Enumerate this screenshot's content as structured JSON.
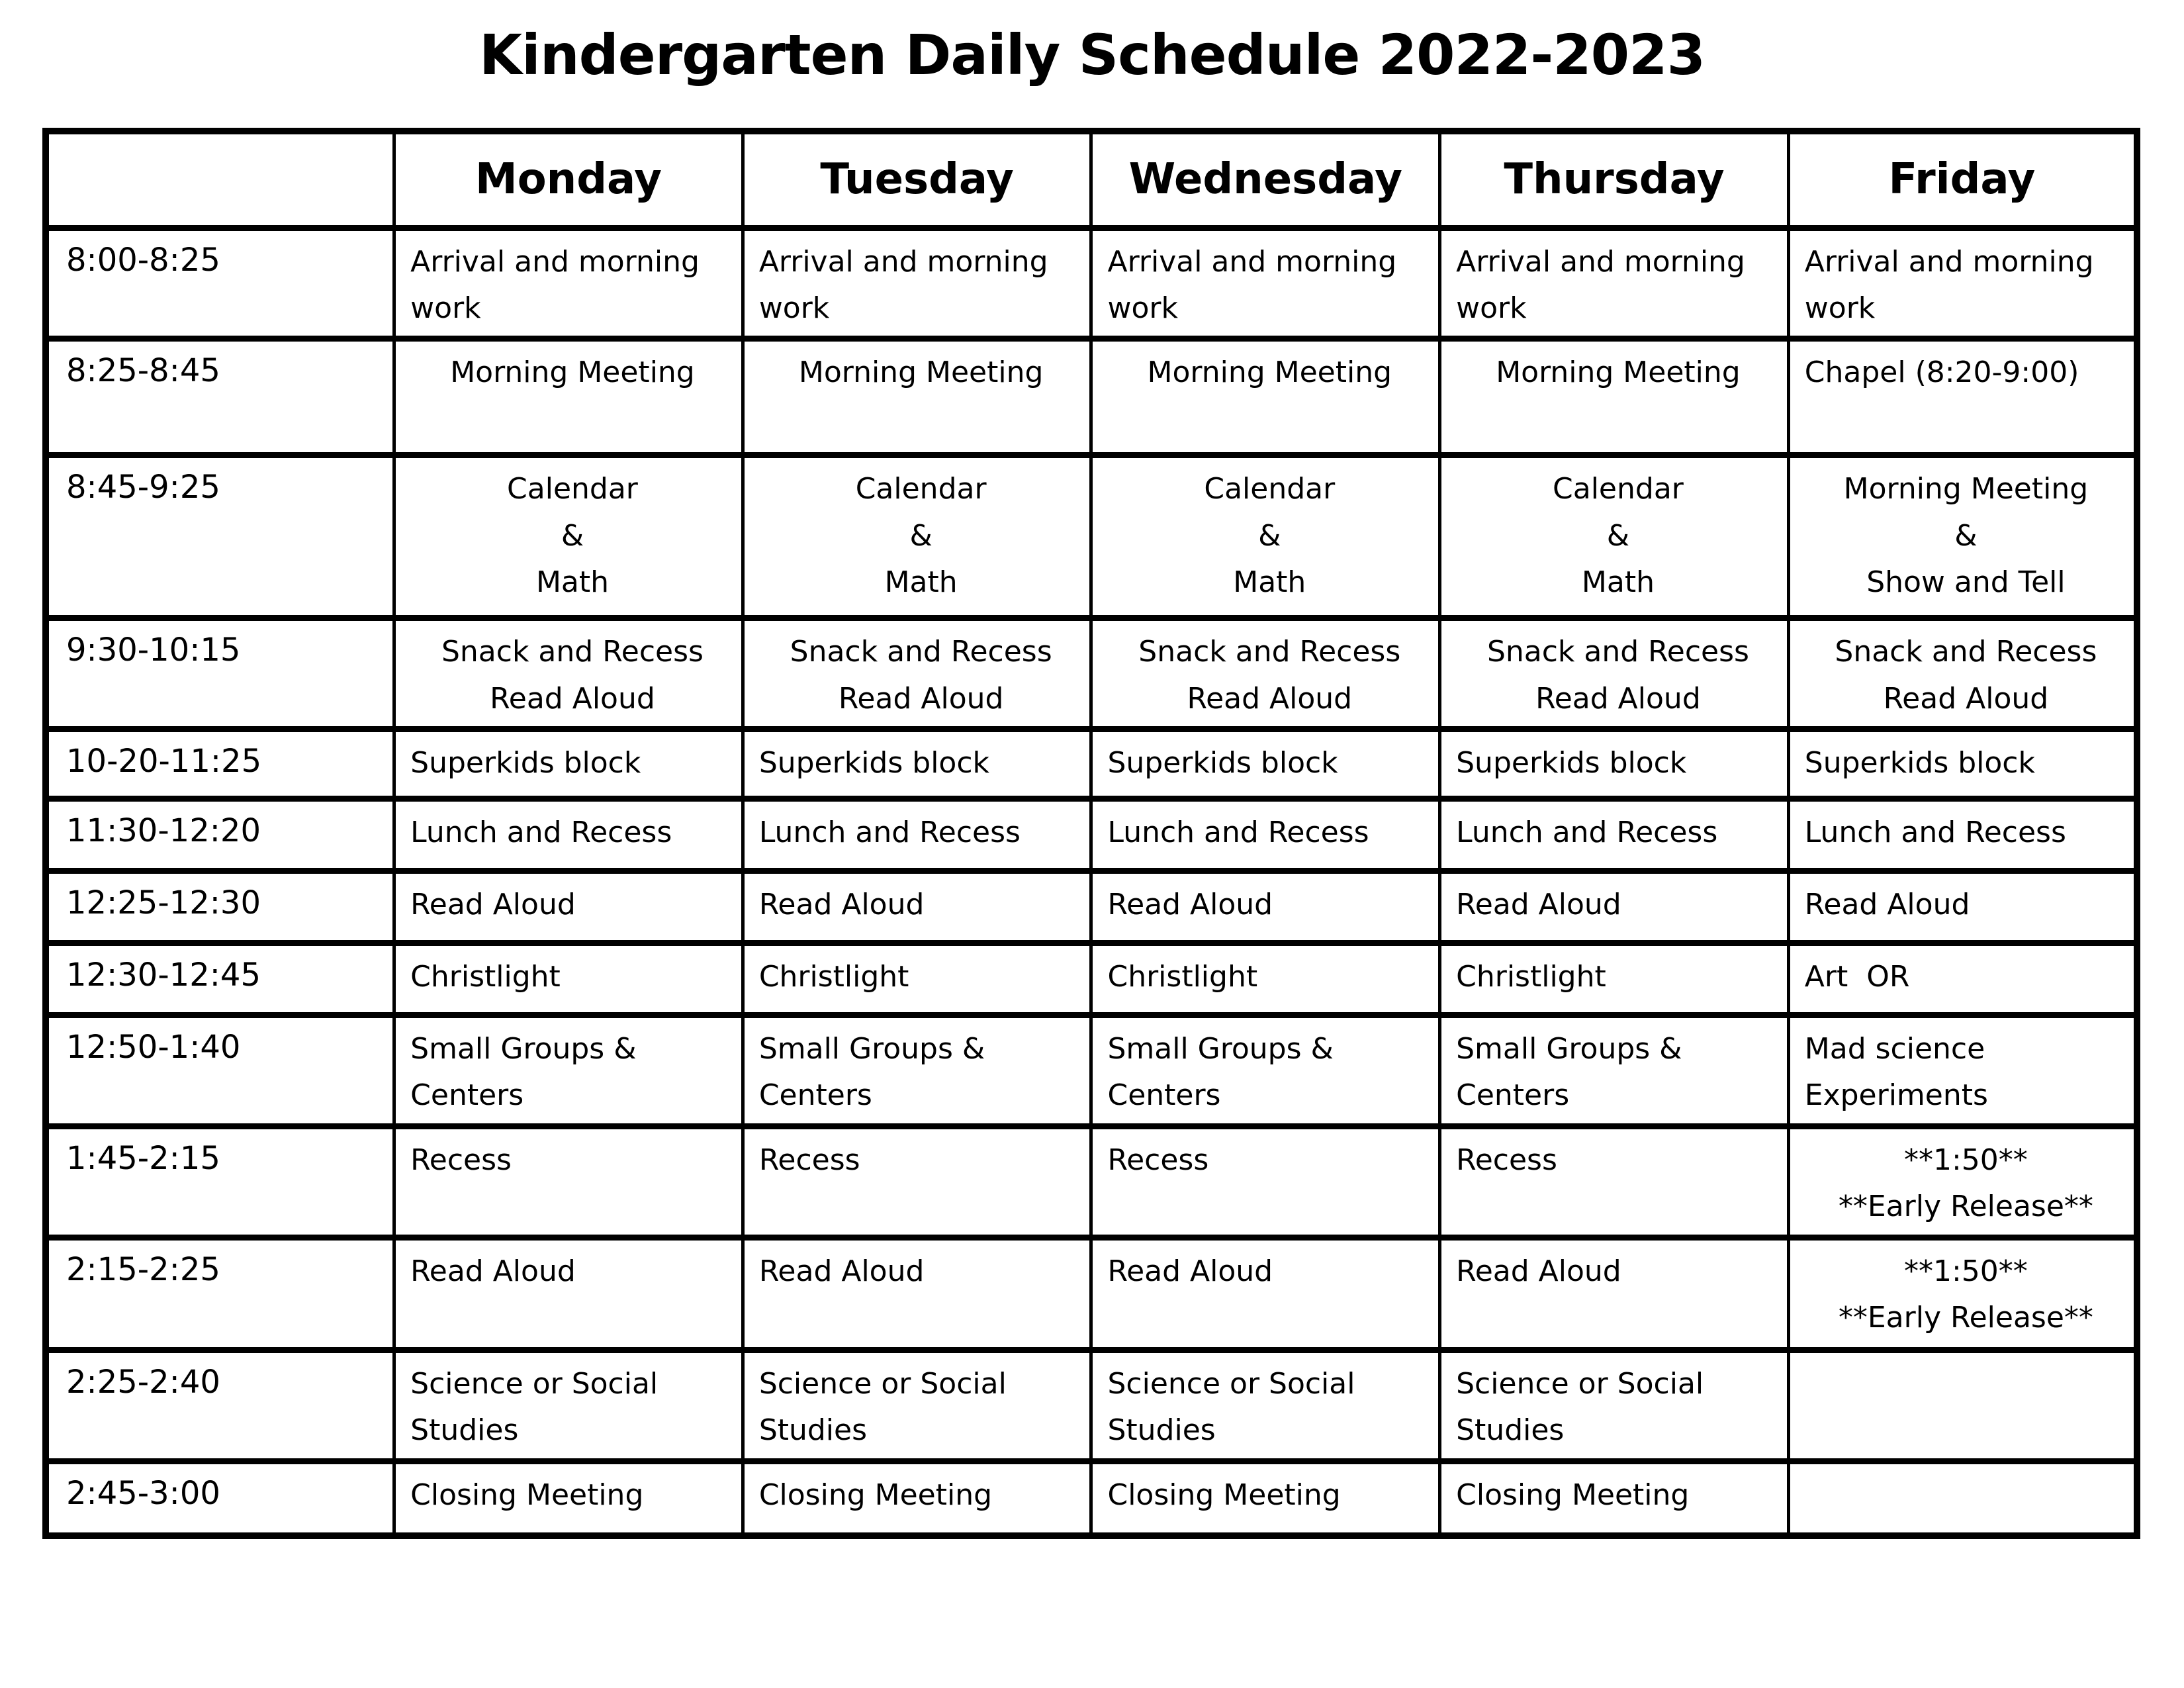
{
  "title": "Kindergarten Daily Schedule 2022-2023",
  "columns": [
    "",
    "Monday",
    "Tuesday",
    "Wednesday",
    "Thursday",
    "Friday"
  ],
  "rows": [
    {
      "time": "8:00-8:25",
      "cells": [
        {
          "text": "Arrival and morning\nwork",
          "align": "left"
        },
        {
          "text": "Arrival and morning\nwork",
          "align": "left"
        },
        {
          "text": "Arrival and morning\nwork",
          "align": "left"
        },
        {
          "text": "Arrival and morning\nwork",
          "align": "left"
        },
        {
          "text": "Arrival and morning\nwork",
          "align": "left"
        }
      ]
    },
    {
      "time": "8:25-8:45",
      "cells": [
        {
          "text": "Morning Meeting",
          "align": "center"
        },
        {
          "text": "Morning Meeting",
          "align": "center"
        },
        {
          "text": "Morning Meeting",
          "align": "center"
        },
        {
          "text": "Morning Meeting",
          "align": "center"
        },
        {
          "text": "Chapel (8:20-9:00)",
          "align": "left"
        }
      ]
    },
    {
      "time": "8:45-9:25",
      "cells": [
        {
          "text": "Calendar\n&\nMath",
          "align": "center"
        },
        {
          "text": "Calendar\n&\nMath",
          "align": "center"
        },
        {
          "text": "Calendar\n&\nMath",
          "align": "center"
        },
        {
          "text": "Calendar\n&\nMath",
          "align": "center"
        },
        {
          "text": "Morning Meeting\n&\nShow and Tell",
          "align": "center"
        }
      ]
    },
    {
      "time": "9:30-10:15",
      "cells": [
        {
          "text": "Snack and Recess\nRead Aloud",
          "align": "center"
        },
        {
          "text": "Snack and Recess\nRead Aloud",
          "align": "center"
        },
        {
          "text": "Snack and Recess\nRead Aloud",
          "align": "center"
        },
        {
          "text": "Snack and Recess\nRead Aloud",
          "align": "center"
        },
        {
          "text": "Snack and Recess\nRead Aloud",
          "align": "center"
        }
      ]
    },
    {
      "time": "10-20-11:25",
      "cells": [
        {
          "text": "Superkids block",
          "align": "left"
        },
        {
          "text": "Superkids block",
          "align": "left"
        },
        {
          "text": "Superkids block",
          "align": "left"
        },
        {
          "text": "Superkids block",
          "align": "left"
        },
        {
          "text": "Superkids block",
          "align": "left"
        }
      ]
    },
    {
      "time": "11:30-12:20",
      "cells": [
        {
          "text": "Lunch and Recess",
          "align": "left"
        },
        {
          "text": "Lunch and Recess",
          "align": "left"
        },
        {
          "text": "Lunch and Recess",
          "align": "left"
        },
        {
          "text": "Lunch and Recess",
          "align": "left"
        },
        {
          "text": "Lunch and Recess",
          "align": "left"
        }
      ]
    },
    {
      "time": "12:25-12:30",
      "cells": [
        {
          "text": "Read Aloud",
          "align": "left"
        },
        {
          "text": "Read Aloud",
          "align": "left"
        },
        {
          "text": "Read Aloud",
          "align": "left"
        },
        {
          "text": "Read Aloud",
          "align": "left"
        },
        {
          "text": "Read Aloud",
          "align": "left"
        }
      ]
    },
    {
      "time": "12:30-12:45",
      "cells": [
        {
          "text": "Christlight",
          "align": "left"
        },
        {
          "text": "Christlight",
          "align": "left"
        },
        {
          "text": "Christlight",
          "align": "left"
        },
        {
          "text": "Christlight",
          "align": "left"
        },
        {
          "text": "Art  OR",
          "align": "left"
        }
      ]
    },
    {
      "time": "12:50-1:40",
      "cells": [
        {
          "text": "Small Groups &\nCenters",
          "align": "left"
        },
        {
          "text": "Small Groups &\nCenters",
          "align": "left"
        },
        {
          "text": "Small Groups &\nCenters",
          "align": "left"
        },
        {
          "text": "Small Groups &\nCenters",
          "align": "left"
        },
        {
          "text": "Mad science\nExperiments",
          "align": "left"
        }
      ]
    },
    {
      "time": "1:45-2:15",
      "cells": [
        {
          "text": "Recess",
          "align": "left"
        },
        {
          "text": "Recess",
          "align": "left"
        },
        {
          "text": "Recess",
          "align": "left"
        },
        {
          "text": "Recess",
          "align": "left"
        },
        {
          "text": "**1:50**\n**Early Release**",
          "align": "center"
        }
      ]
    },
    {
      "time": "2:15-2:25",
      "cells": [
        {
          "text": "Read Aloud",
          "align": "left"
        },
        {
          "text": "Read Aloud",
          "align": "left"
        },
        {
          "text": "Read Aloud",
          "align": "left"
        },
        {
          "text": "Read Aloud",
          "align": "left"
        },
        {
          "text": "**1:50**\n**Early Release**",
          "align": "center"
        }
      ]
    },
    {
      "time": "2:25-2:40",
      "cells": [
        {
          "text": "Science or Social\nStudies",
          "align": "left"
        },
        {
          "text": "Science or Social\nStudies",
          "align": "left"
        },
        {
          "text": "Science or Social\nStudies",
          "align": "left"
        },
        {
          "text": "Science or Social\nStudies",
          "align": "left"
        },
        {
          "text": "",
          "align": "left"
        }
      ]
    },
    {
      "time": "2:45-3:00",
      "cells": [
        {
          "text": "Closing Meeting",
          "align": "left"
        },
        {
          "text": "Closing Meeting",
          "align": "left"
        },
        {
          "text": "Closing Meeting",
          "align": "left"
        },
        {
          "text": "Closing Meeting",
          "align": "left"
        },
        {
          "text": "",
          "align": "left"
        }
      ]
    }
  ]
}
